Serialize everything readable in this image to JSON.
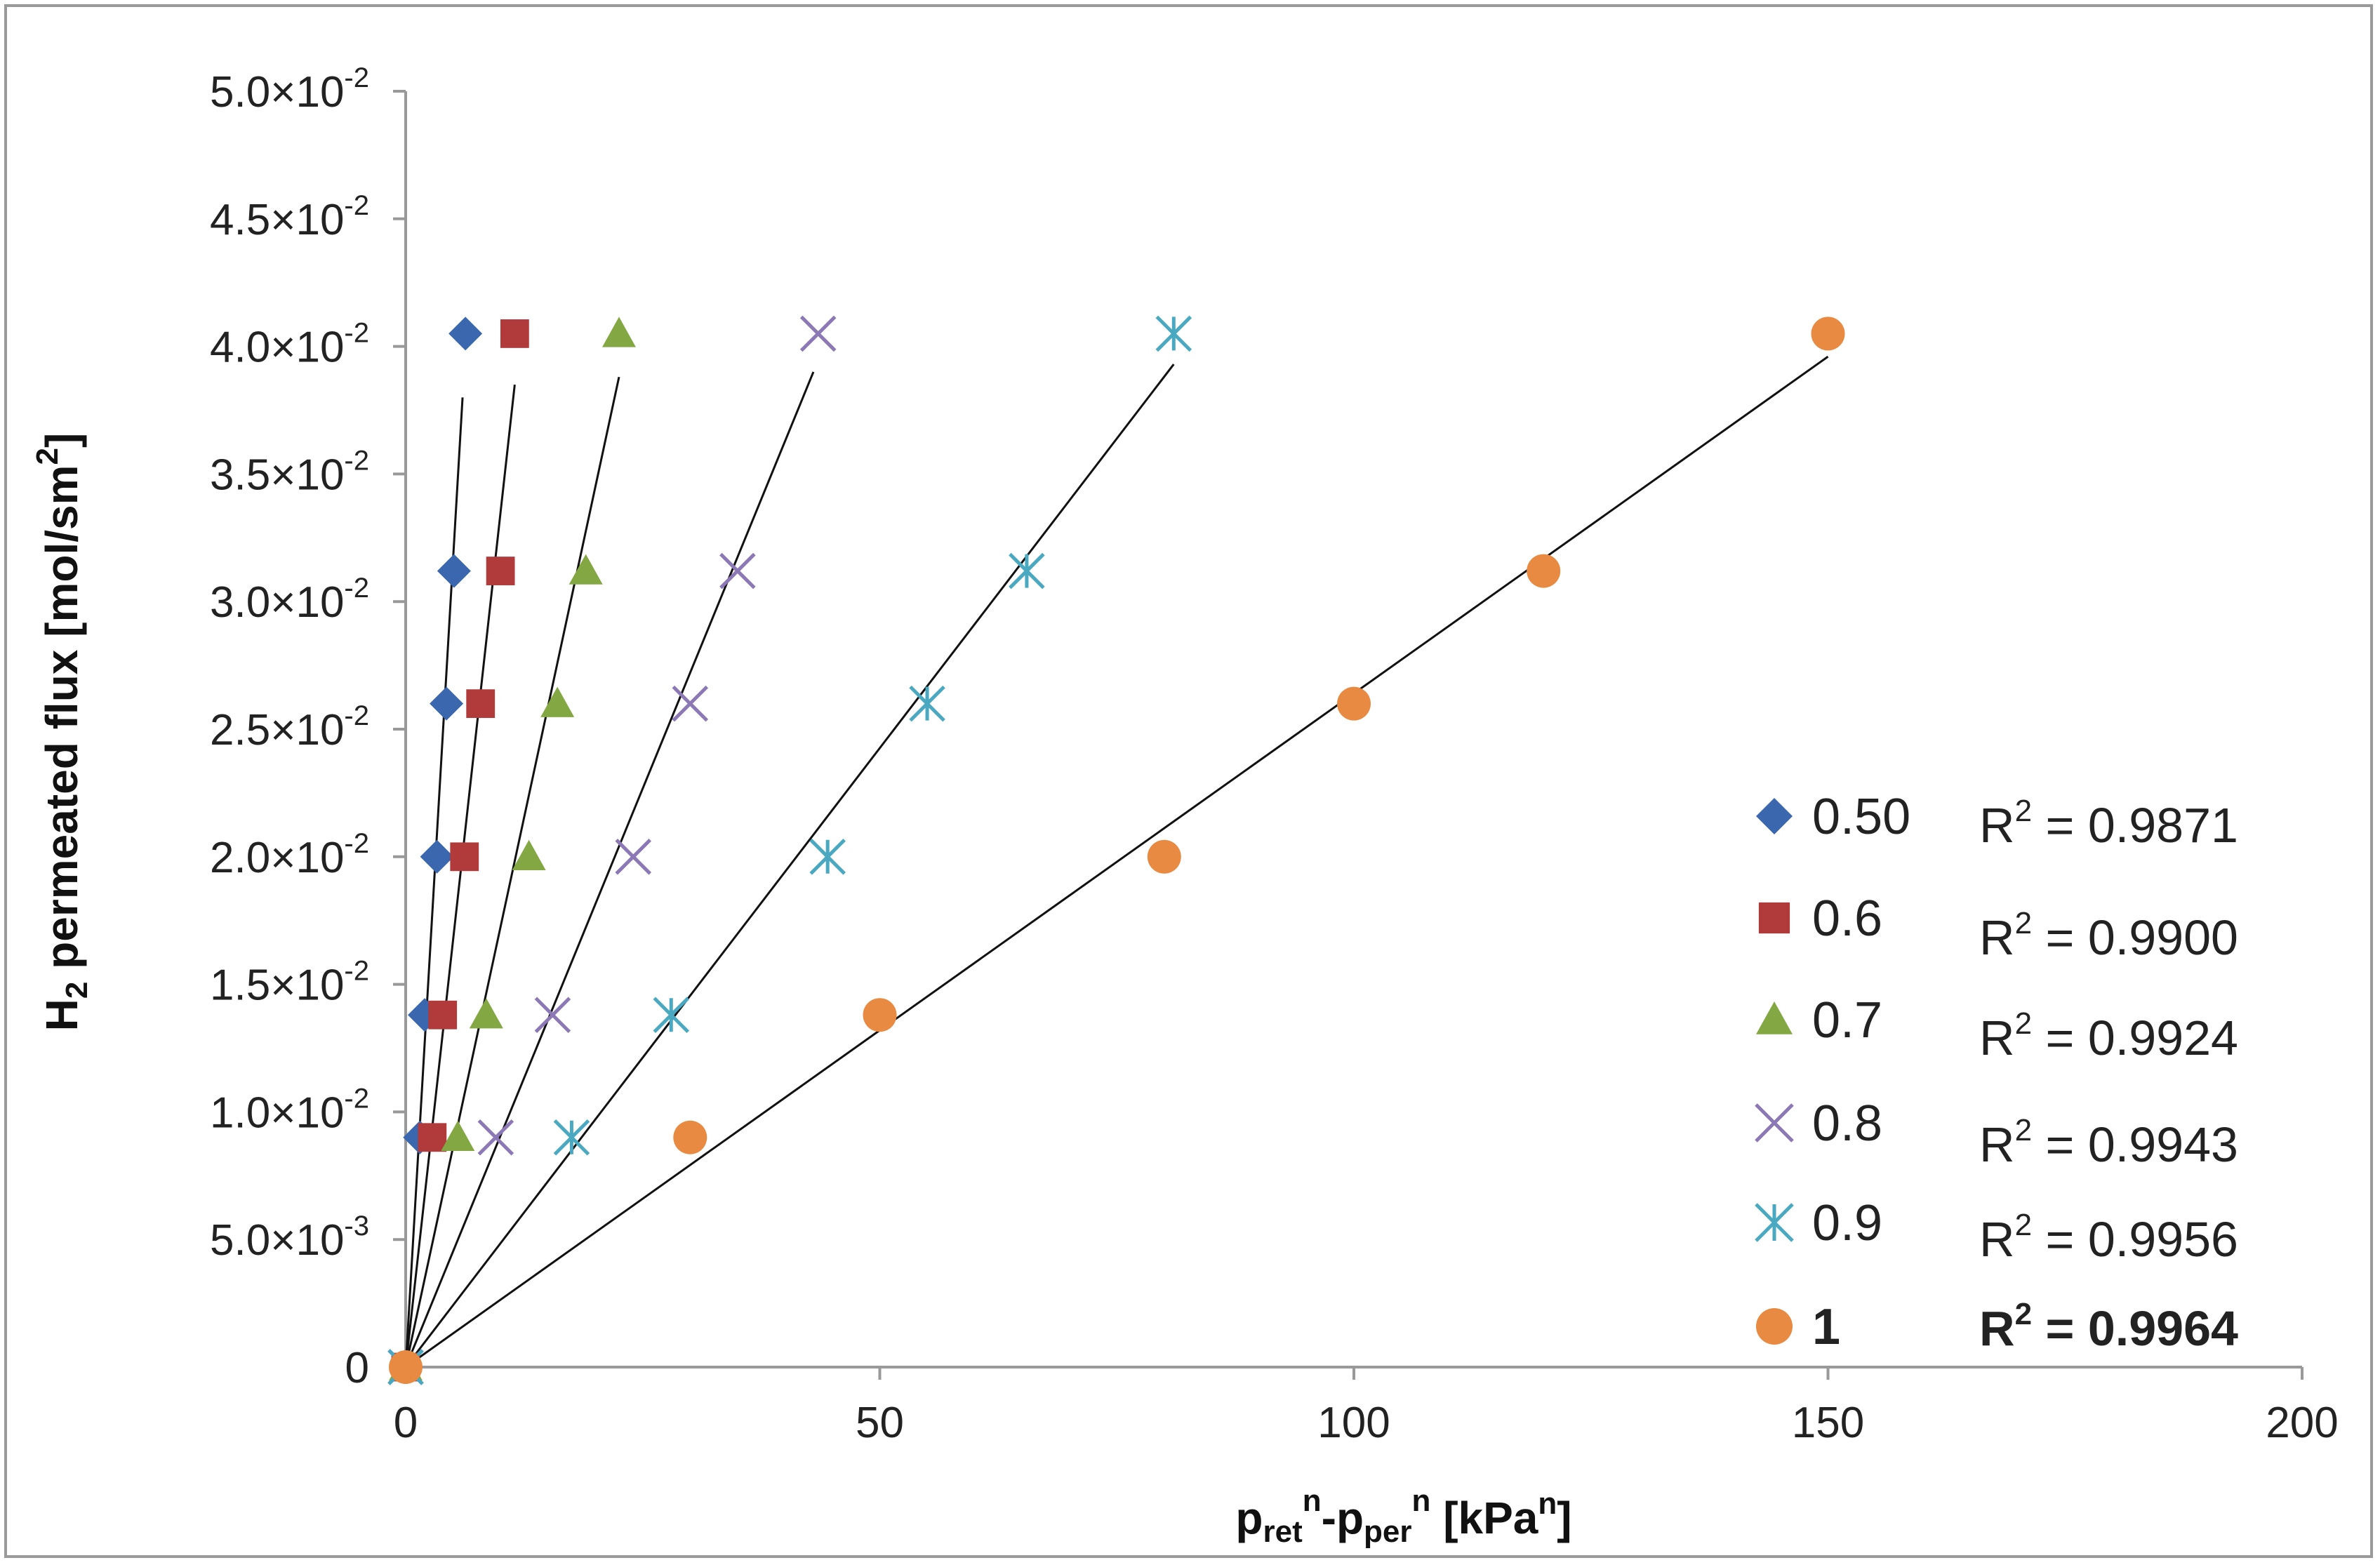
{
  "chart_data": {
    "type": "scatter",
    "xlabel_parts": {
      "p1": "p",
      "sub1": "ret",
      "sup1": "n",
      "dash": "-",
      "p2": "p",
      "sub2": "per",
      "sup2": "n",
      "units": " [kPa",
      "units_sup": "n",
      "close": "]"
    },
    "ylabel_parts": {
      "a": "H",
      "sub": "2",
      "b": " permeated flux [mol/sm",
      "sup": "2",
      "c": "]"
    },
    "xlim": [
      0,
      200
    ],
    "ylim": [
      0,
      0.05
    ],
    "x_ticks": [
      0,
      50,
      100,
      150,
      200
    ],
    "x_tick_labels": [
      "0",
      "50",
      "100",
      "150",
      "200"
    ],
    "y_ticks": [
      0,
      0.005,
      0.01,
      0.015,
      0.02,
      0.025,
      0.03,
      0.035,
      0.04,
      0.045,
      0.05
    ],
    "y_tick_labels": [
      {
        "m": "0",
        "e": ""
      },
      {
        "m": "5.0",
        "e": "-3"
      },
      {
        "m": "1.0",
        "e": "-2"
      },
      {
        "m": "1.5",
        "e": "-2"
      },
      {
        "m": "2.0",
        "e": "-2"
      },
      {
        "m": "2.5",
        "e": "-2"
      },
      {
        "m": "3.0",
        "e": "-2"
      },
      {
        "m": "3.5",
        "e": "-2"
      },
      {
        "m": "4.0",
        "e": "-2"
      },
      {
        "m": "4.5",
        "e": "-2"
      },
      {
        "m": "5.0",
        "e": "-2"
      }
    ],
    "y_values": [
      0,
      0.009,
      0.0138,
      0.02,
      0.026,
      0.0312,
      0.0405
    ],
    "series": [
      {
        "name": "0.50",
        "marker": "diamond",
        "color": "#3a67ad",
        "x": [
          0,
          1.5,
          2.0,
          3.3,
          4.3,
          5.1,
          6.3
        ],
        "fit_end": [
          6.0,
          0.038
        ],
        "r2": "0.9871",
        "r2_highlight": false
      },
      {
        "name": "0.6",
        "marker": "square",
        "color": "#b13a3b",
        "x": [
          0,
          2.8,
          3.9,
          6.2,
          7.9,
          10.0,
          11.5
        ],
        "fit_end": [
          11.5,
          0.0385
        ],
        "r2": "0.9900",
        "r2_highlight": false
      },
      {
        "name": "0.7",
        "marker": "triangle",
        "color": "#83a843",
        "x": [
          0,
          5.5,
          8.5,
          13.0,
          16.0,
          19.0,
          22.5
        ],
        "fit_end": [
          22.5,
          0.0388
        ],
        "r2": "0.9924",
        "r2_highlight": false
      },
      {
        "name": "0.8",
        "marker": "x",
        "color": "#8b78b5",
        "x": [
          0,
          9.5,
          15.5,
          24.0,
          30.0,
          35.0,
          43.5
        ],
        "fit_end": [
          43.0,
          0.039
        ],
        "r2": "0.9943",
        "r2_highlight": false
      },
      {
        "name": "0.9",
        "marker": "asterisk",
        "color": "#4aa9c1",
        "x": [
          0,
          17.5,
          28.0,
          44.5,
          55.0,
          65.5,
          81.0
        ],
        "fit_end": [
          81.0,
          0.0393
        ],
        "r2": "0.9956",
        "r2_highlight": false
      },
      {
        "name": "1",
        "marker": "circle",
        "color": "#e88a42",
        "x": [
          0,
          30.0,
          50.0,
          80.0,
          100.0,
          120.0,
          150.0
        ],
        "fit_end": [
          150.0,
          0.0396
        ],
        "r2": "0.9964",
        "r2_highlight": true
      }
    ],
    "r2_prefix": "R",
    "r2_sup": "2",
    "r2_eq": " = ",
    "highlight_color": "#ff0000",
    "fit_line_color": "#111111"
  }
}
